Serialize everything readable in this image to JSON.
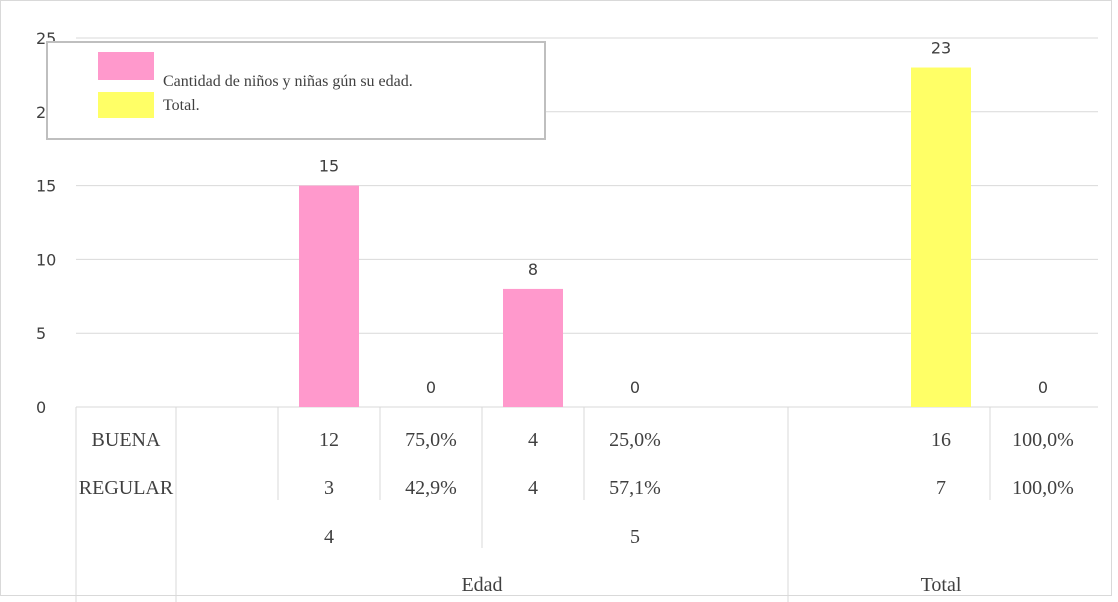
{
  "chart_data": {
    "type": "bar",
    "legend_position": "top-left",
    "grid": true,
    "ylim": [
      0,
      25
    ],
    "yticks": [
      "0",
      "5",
      "10",
      "15",
      "20",
      "25"
    ],
    "series": [
      {
        "name": "Cantidad de niños y niñas  gún su edad.",
        "color": "#ff99cc"
      },
      {
        "name": "Total.",
        "color": "#ffff66"
      }
    ],
    "bars": [
      {
        "value": 15,
        "label": "15",
        "series": 0
      },
      {
        "value": 0,
        "label": "0",
        "series": 0
      },
      {
        "value": 8,
        "label": "8",
        "series": 0
      },
      {
        "value": 0,
        "label": "0",
        "series": 0
      },
      {
        "value": 23,
        "label": "23",
        "series": 1
      },
      {
        "value": 0,
        "label": "0",
        "series": 1
      }
    ],
    "table": {
      "rows": [
        {
          "label": "BUENA",
          "cells": [
            "12",
            "75,0%",
            "4",
            "25,0%",
            "16",
            "100,0%"
          ]
        },
        {
          "label": "REGULAR",
          "cells": [
            "3",
            "42,9%",
            "4",
            "57,1%",
            "7",
            "100,0%"
          ]
        }
      ],
      "level2": [
        "4",
        "5"
      ],
      "level1": [
        "Edad",
        "Total"
      ]
    }
  }
}
